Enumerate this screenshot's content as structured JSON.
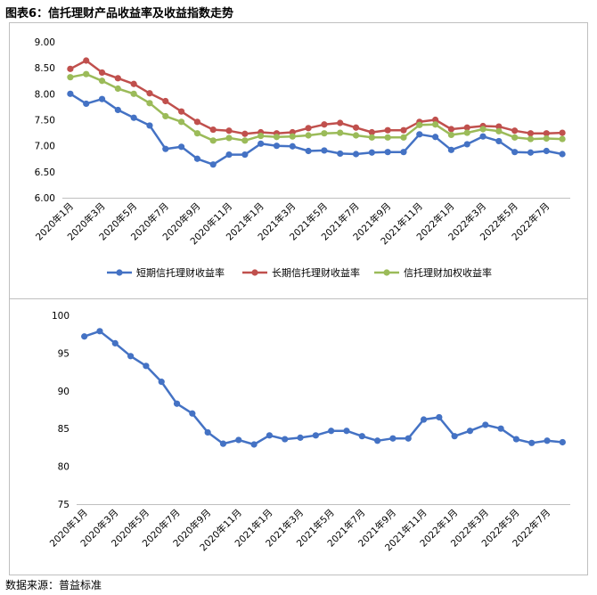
{
  "figure": {
    "title": "图表6：信托理财产品收益率及收益指数走势",
    "source": "数据来源：普益标准"
  },
  "chart_data": [
    {
      "type": "line",
      "x": [
        "2020年1月",
        "2020年2月",
        "2020年3月",
        "2020年4月",
        "2020年5月",
        "2020年6月",
        "2020年7月",
        "2020年8月",
        "2020年9月",
        "2020年10月",
        "2020年11月",
        "2020年12月",
        "2021年1月",
        "2021年2月",
        "2021年3月",
        "2021年4月",
        "2021年5月",
        "2021年6月",
        "2021年7月",
        "2021年8月",
        "2021年9月",
        "2021年10月",
        "2021年11月",
        "2021年12月",
        "2022年1月",
        "2022年2月",
        "2022年3月",
        "2022年4月",
        "2022年5月",
        "2022年6月",
        "2022年7月",
        "2022年8月"
      ],
      "x_tick_labels": [
        "2020年1月",
        "2020年3月",
        "2020年5月",
        "2020年7月",
        "2020年9月",
        "2020年11月",
        "2021年1月",
        "2021年3月",
        "2021年5月",
        "2021年7月",
        "2021年9月",
        "2021年11月",
        "2022年1月",
        "2022年3月",
        "2022年5月",
        "2022年7月"
      ],
      "ylim": [
        6.0,
        9.0
      ],
      "y_ticks": [
        "9.00",
        "8.50",
        "8.00",
        "7.50",
        "7.00",
        "6.50",
        "6.00"
      ],
      "grid": false,
      "legend_position": "bottom",
      "series": [
        {
          "name": "短期信托理财收益率",
          "color": "#4472C4",
          "values": [
            8.0,
            7.81,
            7.9,
            7.69,
            7.54,
            7.39,
            6.94,
            6.98,
            6.75,
            6.64,
            6.83,
            6.83,
            7.04,
            7.0,
            6.99,
            6.9,
            6.91,
            6.85,
            6.84,
            6.87,
            6.88,
            6.88,
            7.22,
            7.17,
            6.92,
            7.03,
            7.18,
            7.09,
            6.88,
            6.87,
            6.9,
            6.84
          ]
        },
        {
          "name": "长期信托理财收益率",
          "color": "#C0504D",
          "values": [
            8.48,
            8.64,
            8.41,
            8.3,
            8.19,
            8.01,
            7.86,
            7.66,
            7.46,
            7.31,
            7.29,
            7.23,
            7.26,
            7.24,
            7.26,
            7.34,
            7.41,
            7.44,
            7.35,
            7.26,
            7.3,
            7.3,
            7.46,
            7.5,
            7.32,
            7.35,
            7.38,
            7.37,
            7.29,
            7.24,
            7.24,
            7.25
          ]
        },
        {
          "name": "信托理财加权收益率",
          "color": "#9BBB59",
          "values": [
            8.32,
            8.38,
            8.25,
            8.1,
            8.0,
            7.82,
            7.57,
            7.46,
            7.24,
            7.1,
            7.15,
            7.1,
            7.19,
            7.17,
            7.18,
            7.2,
            7.24,
            7.25,
            7.2,
            7.16,
            7.16,
            7.16,
            7.4,
            7.41,
            7.21,
            7.25,
            7.32,
            7.28,
            7.16,
            7.13,
            7.14,
            7.13
          ]
        }
      ]
    },
    {
      "type": "line",
      "x": [
        "2020年1月",
        "2020年2月",
        "2020年3月",
        "2020年4月",
        "2020年5月",
        "2020年6月",
        "2020年7月",
        "2020年8月",
        "2020年9月",
        "2020年10月",
        "2020年11月",
        "2020年12月",
        "2021年1月",
        "2021年2月",
        "2021年3月",
        "2021年4月",
        "2021年5月",
        "2021年6月",
        "2021年7月",
        "2021年8月",
        "2021年9月",
        "2021年10月",
        "2021年11月",
        "2021年12月",
        "2022年1月",
        "2022年2月",
        "2022年3月",
        "2022年4月",
        "2022年5月",
        "2022年6月",
        "2022年7月",
        "2022年8月"
      ],
      "x_tick_labels": [
        "2020年1月",
        "2020年3月",
        "2020年5月",
        "2020年7月",
        "2020年9月",
        "2020年11月",
        "2021年1月",
        "2021年3月",
        "2021年5月",
        "2021年7月",
        "2021年9月",
        "2021年11月",
        "2022年1月",
        "2022年3月",
        "2022年5月",
        "2022年7月"
      ],
      "ylim": [
        75,
        100
      ],
      "y_ticks": [
        "100",
        "95",
        "90",
        "85",
        "80",
        "75"
      ],
      "grid": false,
      "series": [
        {
          "color": "#4472C4",
          "values": [
            97.2,
            97.9,
            96.3,
            94.6,
            93.3,
            91.2,
            88.3,
            87.0,
            84.5,
            83.0,
            83.5,
            82.9,
            84.1,
            83.6,
            83.8,
            84.1,
            84.7,
            84.7,
            84.0,
            83.4,
            83.7,
            83.7,
            86.2,
            86.5,
            84.0,
            84.7,
            85.5,
            85.0,
            83.6,
            83.1,
            83.4,
            83.2
          ]
        }
      ]
    }
  ]
}
